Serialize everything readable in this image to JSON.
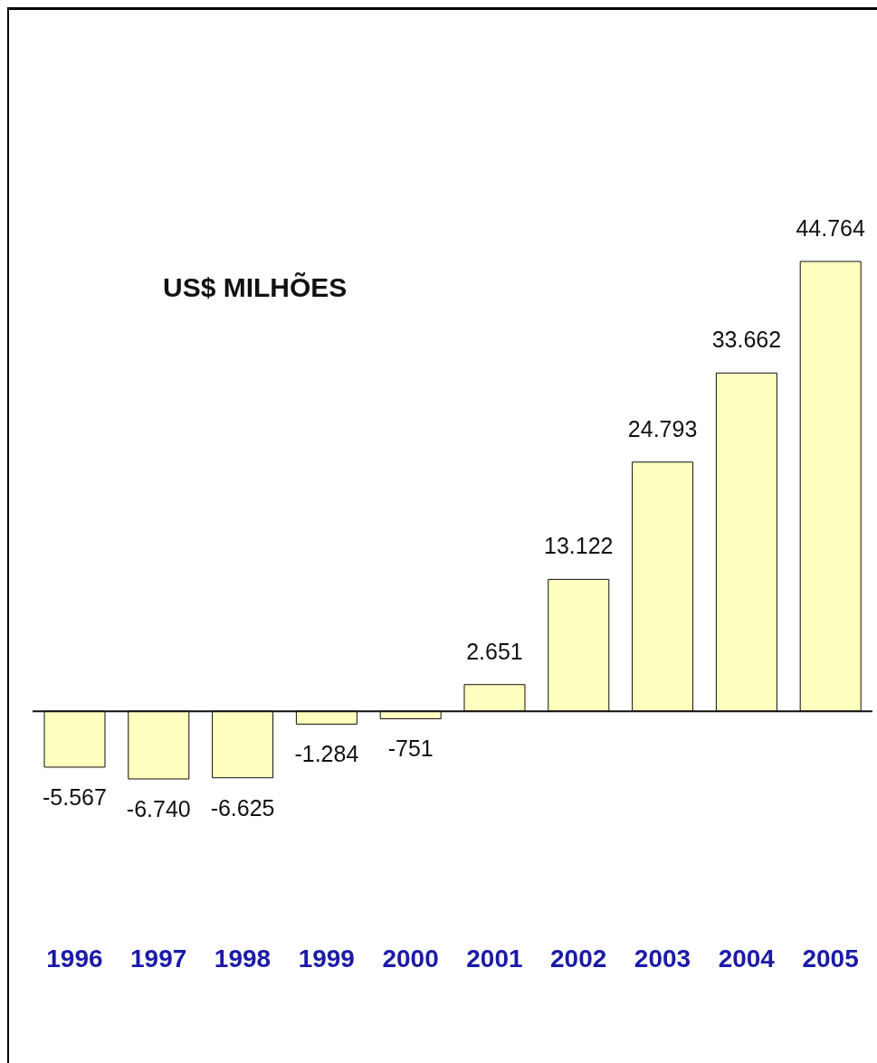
{
  "chart_data": {
    "type": "bar",
    "title": "US$ MILHÕES",
    "categories": [
      "1996",
      "1997",
      "1998",
      "1999",
      "2000",
      "2001",
      "2002",
      "2003",
      "2004",
      "2005"
    ],
    "values": [
      -5567,
      -6740,
      -6625,
      -1284,
      -751,
      2651,
      13122,
      24793,
      33662,
      44764
    ],
    "value_labels": [
      "-5.567",
      "-6.740",
      "-6.625",
      "-1.284",
      "-751",
      "2.651",
      "13.122",
      "24.793",
      "33.662",
      "44.764"
    ],
    "color": "#ffffc0"
  }
}
